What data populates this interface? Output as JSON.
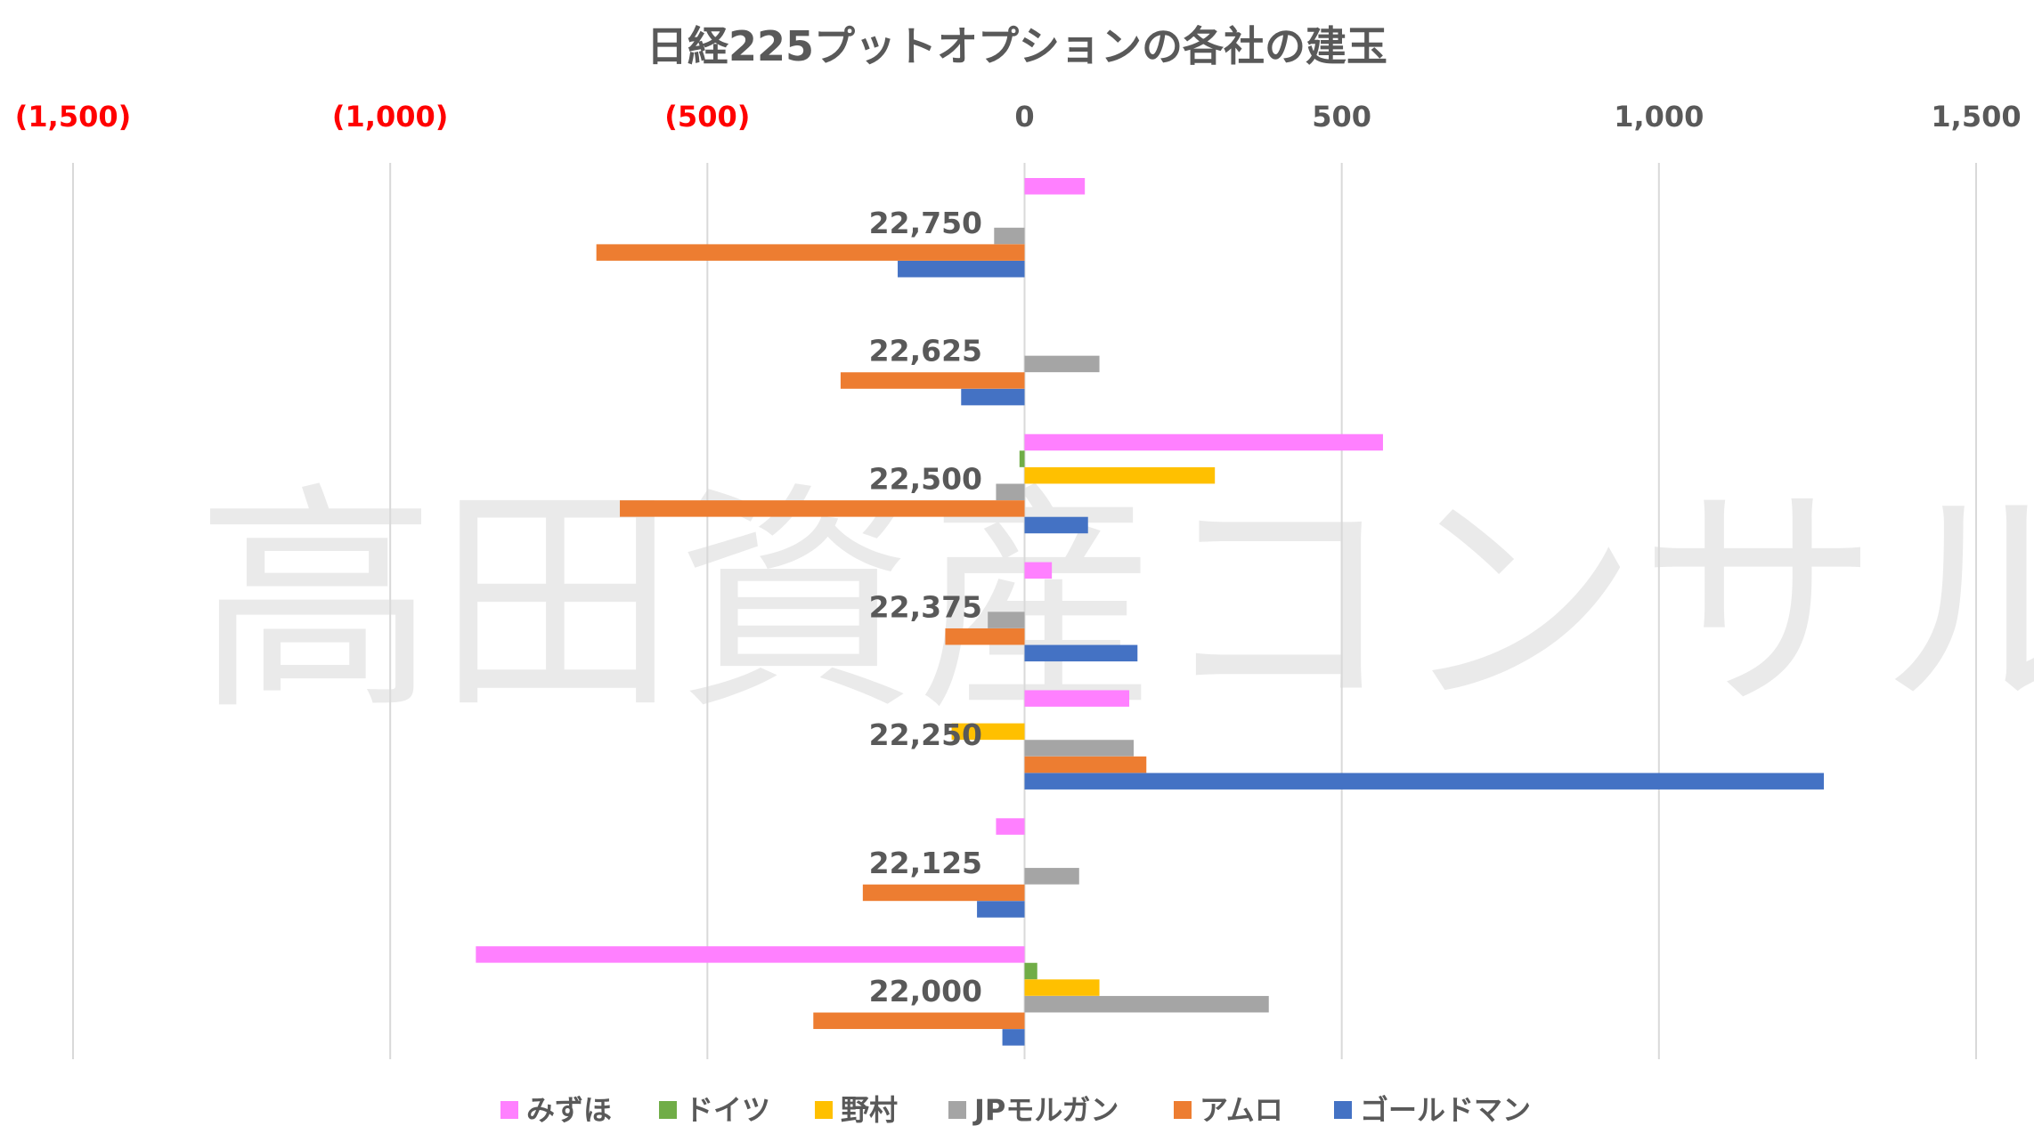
{
  "watermark": "高田資産コンサル",
  "chart_data": {
    "type": "bar",
    "orientation": "horizontal",
    "title": "日経225プットオプションの各社の建玉",
    "xlim": [
      -1500,
      1500
    ],
    "x_ticks": [
      -1500,
      -1000,
      -500,
      0,
      500,
      1000,
      1500
    ],
    "x_tick_labels": [
      "(1,500)",
      "(1,000)",
      "(500)",
      "0",
      "500",
      "1,000",
      "1,500"
    ],
    "negative_tick_color": "#ff0000",
    "positive_tick_color": "#595959",
    "axis_position": "top",
    "grid": true,
    "legend_position": "bottom",
    "categories": [
      "22,750",
      "22,625",
      "22,500",
      "22,375",
      "22,250",
      "22,125",
      "22,000"
    ],
    "series": [
      {
        "name": "みずほ",
        "color": "#ff80ff",
        "values": [
          95,
          0,
          565,
          43,
          165,
          -45,
          -865
        ]
      },
      {
        "name": "ドイツ",
        "color": "#70ad47",
        "values": [
          0,
          0,
          -8,
          0,
          0,
          0,
          20
        ]
      },
      {
        "name": "野村",
        "color": "#ffc000",
        "values": [
          0,
          0,
          300,
          0,
          -115,
          0,
          118
        ]
      },
      {
        "name": "JPモルガン",
        "color": "#a5a5a5",
        "values": [
          -48,
          118,
          -45,
          -58,
          172,
          86,
          385
        ]
      },
      {
        "name": "アムロ",
        "color": "#ed7d31",
        "values": [
          -675,
          -290,
          -638,
          -125,
          192,
          -255,
          -333
        ]
      },
      {
        "name": "ゴールドマン",
        "color": "#4472c4",
        "values": [
          -200,
          -100,
          100,
          178,
          1260,
          -75,
          -35
        ]
      }
    ]
  }
}
